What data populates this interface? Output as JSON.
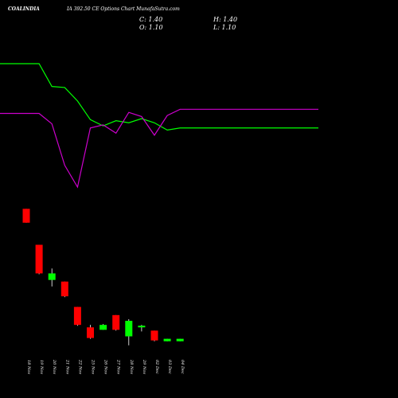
{
  "header": {
    "symbol": "COALINDIA",
    "title": "IA 392.50 CE Options Chart MunafaSutra.com",
    "c_label": "C: 1.40",
    "h_label": "H: 1.40",
    "o_label": "O: 1.10",
    "l_label": "L: 1.10"
  },
  "colors": {
    "background": "#000000",
    "up": "#00ff00",
    "down": "#ff0000",
    "line_green": "#00ff00",
    "line_magenta": "#cc00cc",
    "text": "#ffffff"
  },
  "chart_data": {
    "type": "candlestick",
    "categories": [
      "18 Nov",
      "19 Nov",
      "20 Nov",
      "21 Nov",
      "22 Nov",
      "25 Nov",
      "26 Nov",
      "27 Nov",
      "28 Nov",
      "29 Nov",
      "02 Dec",
      "03 Dec",
      "04 Dec"
    ],
    "candles": [
      {
        "date": "18 Nov",
        "open": 17.3,
        "high": 17.3,
        "low": 15.6,
        "close": 15.6
      },
      {
        "date": "19 Nov",
        "open": 12.9,
        "high": 12.9,
        "low": 9.3,
        "close": 9.4
      },
      {
        "date": "20 Nov",
        "open": 8.6,
        "high": 10.0,
        "low": 7.8,
        "close": 9.4
      },
      {
        "date": "21 Nov",
        "open": 8.4,
        "high": 8.4,
        "low": 6.5,
        "close": 6.6
      },
      {
        "date": "22 Nov",
        "open": 5.3,
        "high": 5.3,
        "low": 3.0,
        "close": 3.1
      },
      {
        "date": "25 Nov",
        "open": 2.8,
        "high": 3.1,
        "low": 1.4,
        "close": 1.5
      },
      {
        "date": "26 Nov",
        "open": 2.5,
        "high": 3.2,
        "low": 2.5,
        "close": 3.1
      },
      {
        "date": "27 Nov",
        "open": 4.3,
        "high": 4.3,
        "low": 2.4,
        "close": 2.5
      },
      {
        "date": "28 Nov",
        "open": 1.7,
        "high": 3.8,
        "low": 0.6,
        "close": 3.6
      },
      {
        "date": "29 Nov",
        "open": 2.8,
        "high": 3.1,
        "low": 2.3,
        "close": 3.0
      },
      {
        "date": "02 Dec",
        "open": 2.4,
        "high": 2.4,
        "low": 1.1,
        "close": 1.2
      },
      {
        "date": "03 Dec",
        "open": 1.1,
        "high": 1.4,
        "low": 1.1,
        "close": 1.4
      },
      {
        "date": "04 Dec",
        "open": 1.1,
        "high": 1.4,
        "low": 1.1,
        "close": 1.4
      }
    ],
    "overlay_lines": [
      {
        "color": "#00ff00",
        "values": [
          100,
          100,
          78,
          77,
          64,
          46,
          40,
          45,
          43,
          47,
          43,
          36,
          38
        ]
      },
      {
        "color": "#cc00cc",
        "values": [
          52,
          52,
          42,
          2,
          -19,
          38,
          41,
          33,
          53,
          49,
          31,
          50,
          56
        ]
      }
    ]
  }
}
